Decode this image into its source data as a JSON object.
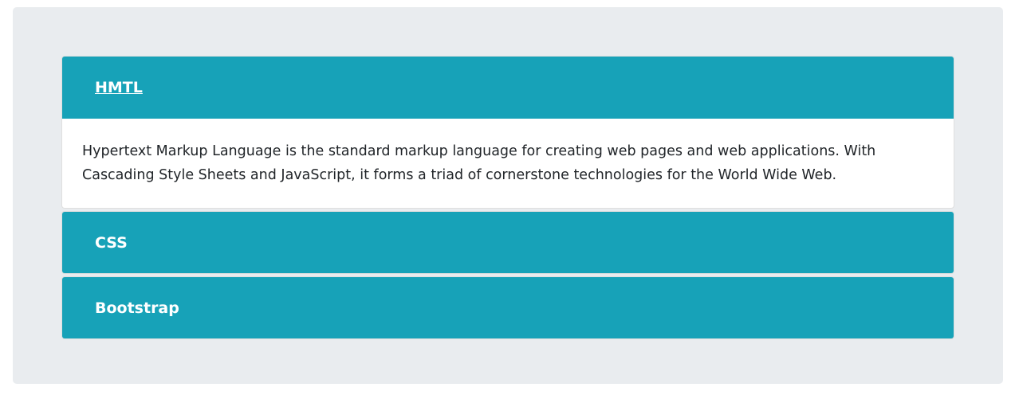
{
  "accordion": {
    "items": [
      {
        "title": "HMTL",
        "expanded": true,
        "body": "Hypertext Markup Language is the standard markup language for creating web pages and web applications. With Cascading Style Sheets and JavaScript, it forms a triad of cornerstone technologies for the World Wide Web."
      },
      {
        "title": "CSS",
        "expanded": false
      },
      {
        "title": "Bootstrap",
        "expanded": false
      }
    ]
  },
  "colors": {
    "header_bg": "#17a2b8",
    "page_bg": "#e9ecef",
    "text": "#212529"
  }
}
